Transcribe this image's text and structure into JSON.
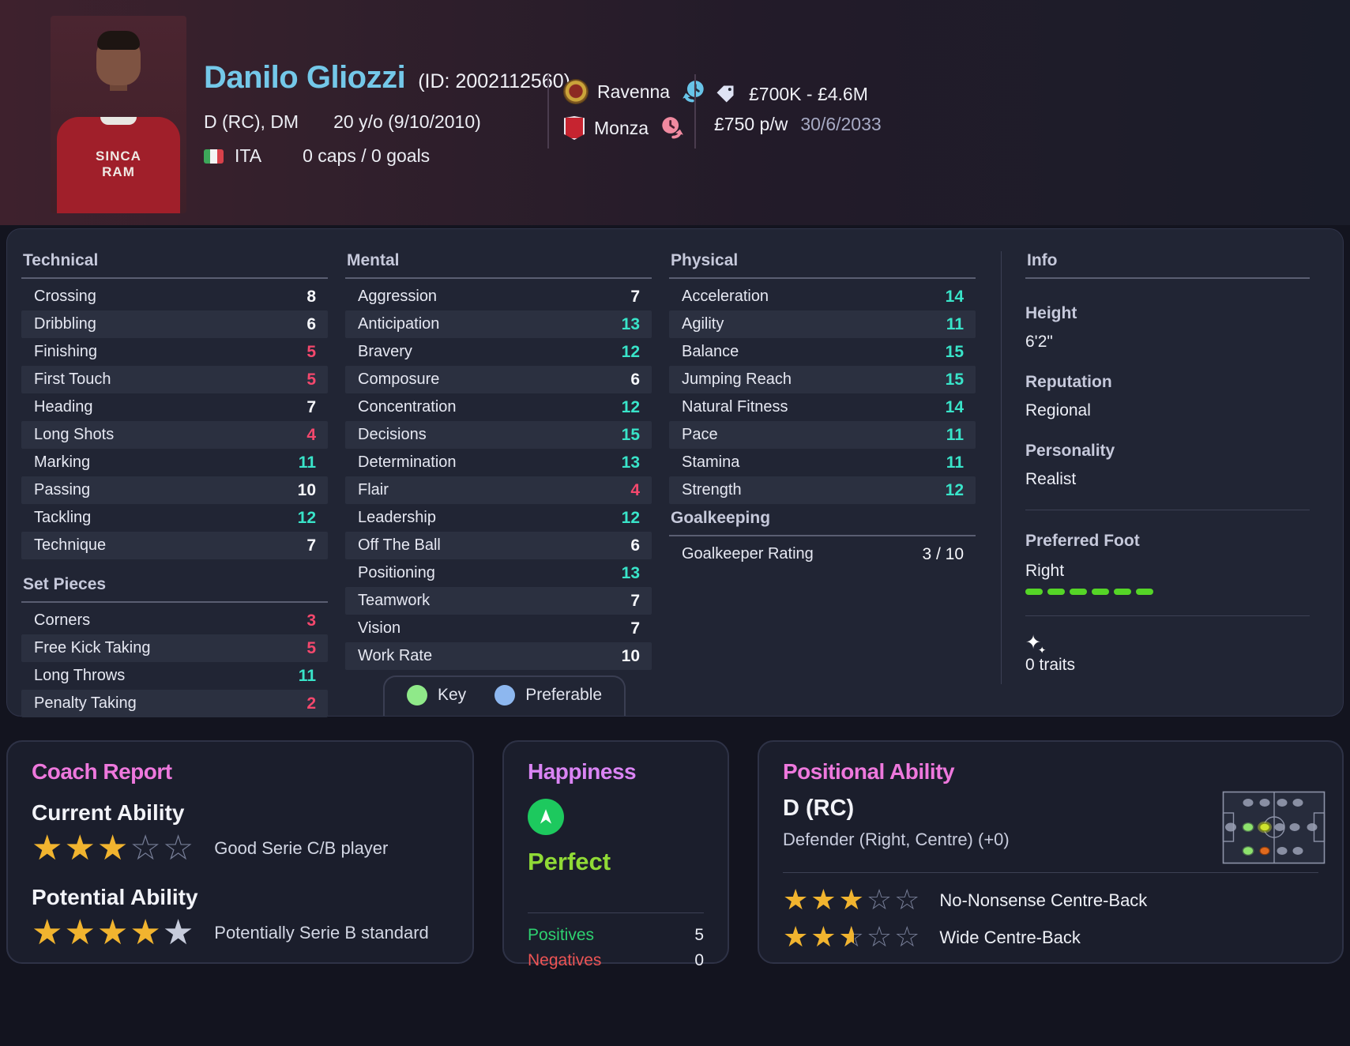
{
  "header": {
    "name": "Danilo Gliozzi",
    "id_text": "(ID: 2002112560)",
    "position": "D (RC), DM",
    "age_dob": "20 y/o (9/10/2010)",
    "nation_code": "ITA",
    "caps_goals": "0 caps / 0 goals",
    "jersey_text": "SINCA\nRAM",
    "clubs": [
      {
        "name": "Ravenna",
        "icon": "loan-clock-blue-icon"
      },
      {
        "name": "Monza",
        "icon": "loan-clock-pink-icon"
      }
    ],
    "value_range": "£700K - £4.6M",
    "wage": "£750 p/w",
    "contract_end": "30/6/2033"
  },
  "attributes": {
    "technical": {
      "title": "Technical",
      "rows": [
        {
          "label": "Crossing",
          "value": "8"
        },
        {
          "label": "Dribbling",
          "value": "6"
        },
        {
          "label": "Finishing",
          "value": "5"
        },
        {
          "label": "First Touch",
          "value": "5"
        },
        {
          "label": "Heading",
          "value": "7"
        },
        {
          "label": "Long Shots",
          "value": "4"
        },
        {
          "label": "Marking",
          "value": "11"
        },
        {
          "label": "Passing",
          "value": "10"
        },
        {
          "label": "Tackling",
          "value": "12"
        },
        {
          "label": "Technique",
          "value": "7"
        }
      ]
    },
    "set_pieces": {
      "title": "Set Pieces",
      "rows": [
        {
          "label": "Corners",
          "value": "3"
        },
        {
          "label": "Free Kick Taking",
          "value": "5"
        },
        {
          "label": "Long Throws",
          "value": "11"
        },
        {
          "label": "Penalty Taking",
          "value": "2"
        }
      ]
    },
    "mental": {
      "title": "Mental",
      "rows": [
        {
          "label": "Aggression",
          "value": "7"
        },
        {
          "label": "Anticipation",
          "value": "13"
        },
        {
          "label": "Bravery",
          "value": "12"
        },
        {
          "label": "Composure",
          "value": "6"
        },
        {
          "label": "Concentration",
          "value": "12"
        },
        {
          "label": "Decisions",
          "value": "15"
        },
        {
          "label": "Determination",
          "value": "13"
        },
        {
          "label": "Flair",
          "value": "4"
        },
        {
          "label": "Leadership",
          "value": "12"
        },
        {
          "label": "Off The Ball",
          "value": "6"
        },
        {
          "label": "Positioning",
          "value": "13"
        },
        {
          "label": "Teamwork",
          "value": "7"
        },
        {
          "label": "Vision",
          "value": "7"
        },
        {
          "label": "Work Rate",
          "value": "10"
        }
      ]
    },
    "physical": {
      "title": "Physical",
      "rows": [
        {
          "label": "Acceleration",
          "value": "14"
        },
        {
          "label": "Agility",
          "value": "11"
        },
        {
          "label": "Balance",
          "value": "15"
        },
        {
          "label": "Jumping Reach",
          "value": "15"
        },
        {
          "label": "Natural Fitness",
          "value": "14"
        },
        {
          "label": "Pace",
          "value": "11"
        },
        {
          "label": "Stamina",
          "value": "11"
        },
        {
          "label": "Strength",
          "value": "12"
        }
      ]
    },
    "goalkeeping": {
      "title": "Goalkeeping",
      "label": "Goalkeeper Rating",
      "value": "3 / 10"
    },
    "legend": {
      "key": "Key",
      "preferable": "Preferable"
    }
  },
  "info": {
    "title": "Info",
    "height_label": "Height",
    "height": "6'2\"",
    "reputation_label": "Reputation",
    "reputation": "Regional",
    "personality_label": "Personality",
    "personality": "Realist",
    "preferred_foot_label": "Preferred Foot",
    "preferred_foot": "Right",
    "traits": "0 traits"
  },
  "coach_report": {
    "title": "Coach Report",
    "current_label": "Current Ability",
    "current_stars": [
      "gold",
      "gold",
      "gold",
      "empty",
      "empty"
    ],
    "current_desc": "Good Serie C/B player",
    "potential_label": "Potential Ability",
    "potential_stars": [
      "gold",
      "gold",
      "gold",
      "gold",
      "silver"
    ],
    "potential_desc": "Potentially Serie B standard"
  },
  "happiness": {
    "title": "Happiness",
    "status": "Perfect",
    "positives_label": "Positives",
    "positives": "5",
    "negatives_label": "Negatives",
    "negatives": "0"
  },
  "positional": {
    "title": "Positional Ability",
    "position": "D (RC)",
    "description": "Defender (Right, Centre) (+0)",
    "roles": [
      {
        "stars": [
          "gold",
          "gold",
          "gold",
          "empty",
          "empty"
        ],
        "label": "No-Nonsense Centre-Back"
      },
      {
        "stars": [
          "gold",
          "gold",
          "half",
          "empty",
          "empty"
        ],
        "label": "Wide Centre-Back"
      }
    ]
  },
  "colors": {
    "accent_teal": "#39e4c9",
    "accent_red": "#f4486d",
    "value_white": "#f6f7fb",
    "star_gold": "#f1b42f",
    "key_green": "#8fe989",
    "preferable_blue": "#8db7ef",
    "header_pink": "#ee78dd",
    "happiness_green": "#90da36",
    "foot_bar_green": "#55d527"
  }
}
